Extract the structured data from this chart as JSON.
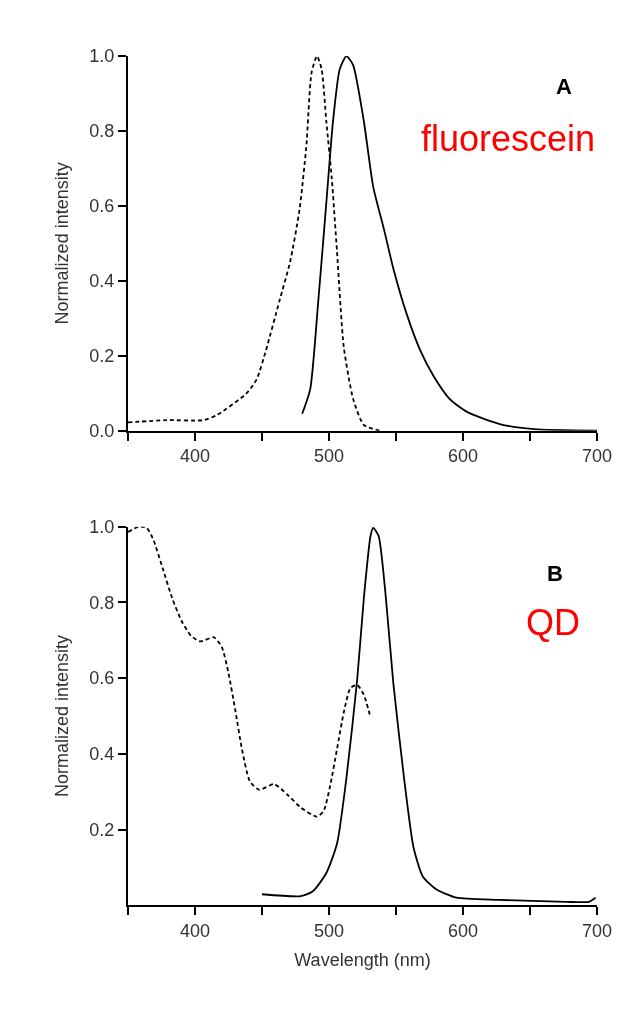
{
  "chart_data": [
    {
      "type": "line",
      "ylabel": "Normalized intensity",
      "annotations": [
        "A",
        "fluorescein"
      ],
      "xlim": [
        350,
        700
      ],
      "xticks": [
        {
          "value": 350,
          "label": null
        },
        400,
        {
          "value": 450,
          "label": null
        },
        500,
        {
          "value": 550,
          "label": null
        },
        600,
        {
          "value": 650,
          "label": null
        },
        700
      ],
      "ylim": [
        0,
        1.0
      ],
      "yticks": [
        {
          "value": 0,
          "label": "0.0"
        },
        {
          "value": 0.2,
          "label": "0.2"
        },
        {
          "value": 0.4,
          "label": "0.4"
        },
        {
          "value": 0.6,
          "label": "0.6"
        },
        {
          "value": 0.8,
          "label": "0.8"
        },
        {
          "value": 1.0,
          "label": "1.0"
        }
      ],
      "series": [
        {
          "color": "#000000",
          "line_style": "dashed",
          "x": [
            350,
            379,
            406,
            416,
            438,
            446,
            453,
            463,
            471,
            478,
            483,
            487,
            491,
            494.5,
            498,
            502,
            506,
            511,
            518,
            526,
            538
          ],
          "values": [
            0.022,
            0.028,
            0.028,
            0.041,
            0.098,
            0.137,
            0.215,
            0.346,
            0.451,
            0.59,
            0.756,
            0.956,
            1.0,
            0.965,
            0.826,
            0.677,
            0.477,
            0.224,
            0.085,
            0.015,
            0.0
          ]
        },
        {
          "color": "#000000",
          "line_style": "solid",
          "x": [
            480,
            486,
            492,
            498,
            503,
            508,
            513,
            518,
            526,
            533,
            541,
            548,
            558,
            568,
            578,
            590,
            603,
            628,
            653,
            700
          ],
          "values": [
            0.045,
            0.111,
            0.346,
            0.608,
            0.826,
            0.965,
            1.0,
            0.976,
            0.826,
            0.651,
            0.538,
            0.433,
            0.311,
            0.215,
            0.146,
            0.085,
            0.05,
            0.017,
            0.004,
            0.0
          ]
        }
      ]
    },
    {
      "type": "line",
      "xlabel": "Wavelength (nm)",
      "ylabel": "Normalized intensity",
      "annotations": [
        "B",
        "QD"
      ],
      "xlim": [
        350,
        700
      ],
      "xticks": [
        {
          "value": 350,
          "label": null
        },
        400,
        {
          "value": 450,
          "label": null
        },
        500,
        {
          "value": 550,
          "label": null
        },
        600,
        {
          "value": 650,
          "label": null
        },
        700
      ],
      "ylim": [
        0,
        1.0
      ],
      "yticks": [
        {
          "value": 0.2,
          "label": "0.2"
        },
        {
          "value": 0.4,
          "label": "0.4"
        },
        {
          "value": 0.6,
          "label": "0.6"
        },
        {
          "value": 0.8,
          "label": "0.8"
        },
        {
          "value": 1.0,
          "label": "1.0"
        }
      ],
      "series": [
        {
          "color": "#000000",
          "line_style": "dashed",
          "x": [
            350,
            358,
            364,
            369,
            376,
            383,
            390,
            397,
            404,
            414,
            420,
            425,
            430,
            435,
            441,
            448,
            459,
            469,
            479,
            491,
            496,
            501,
            506,
            511,
            516,
            521,
            526,
            531
          ],
          "values": [
            0.986,
            1.0,
            0.997,
            0.965,
            0.889,
            0.811,
            0.751,
            0.712,
            0.697,
            0.708,
            0.682,
            0.613,
            0.517,
            0.413,
            0.327,
            0.305,
            0.32,
            0.292,
            0.258,
            0.234,
            0.249,
            0.318,
            0.413,
            0.509,
            0.574,
            0.582,
            0.556,
            0.496
          ]
        },
        {
          "color": "#000000",
          "line_style": "solid",
          "x": [
            450,
            479,
            488,
            498,
            506,
            513,
            521,
            526,
            531,
            533,
            537,
            542,
            548,
            556,
            563,
            570,
            580,
            595,
            627,
            677,
            694,
            699
          ],
          "values": [
            0.029,
            0.024,
            0.037,
            0.085,
            0.163,
            0.336,
            0.595,
            0.811,
            0.976,
            0.997,
            0.976,
            0.829,
            0.587,
            0.336,
            0.154,
            0.076,
            0.042,
            0.02,
            0.014,
            0.009,
            0.009,
            0.02
          ]
        }
      ]
    }
  ]
}
